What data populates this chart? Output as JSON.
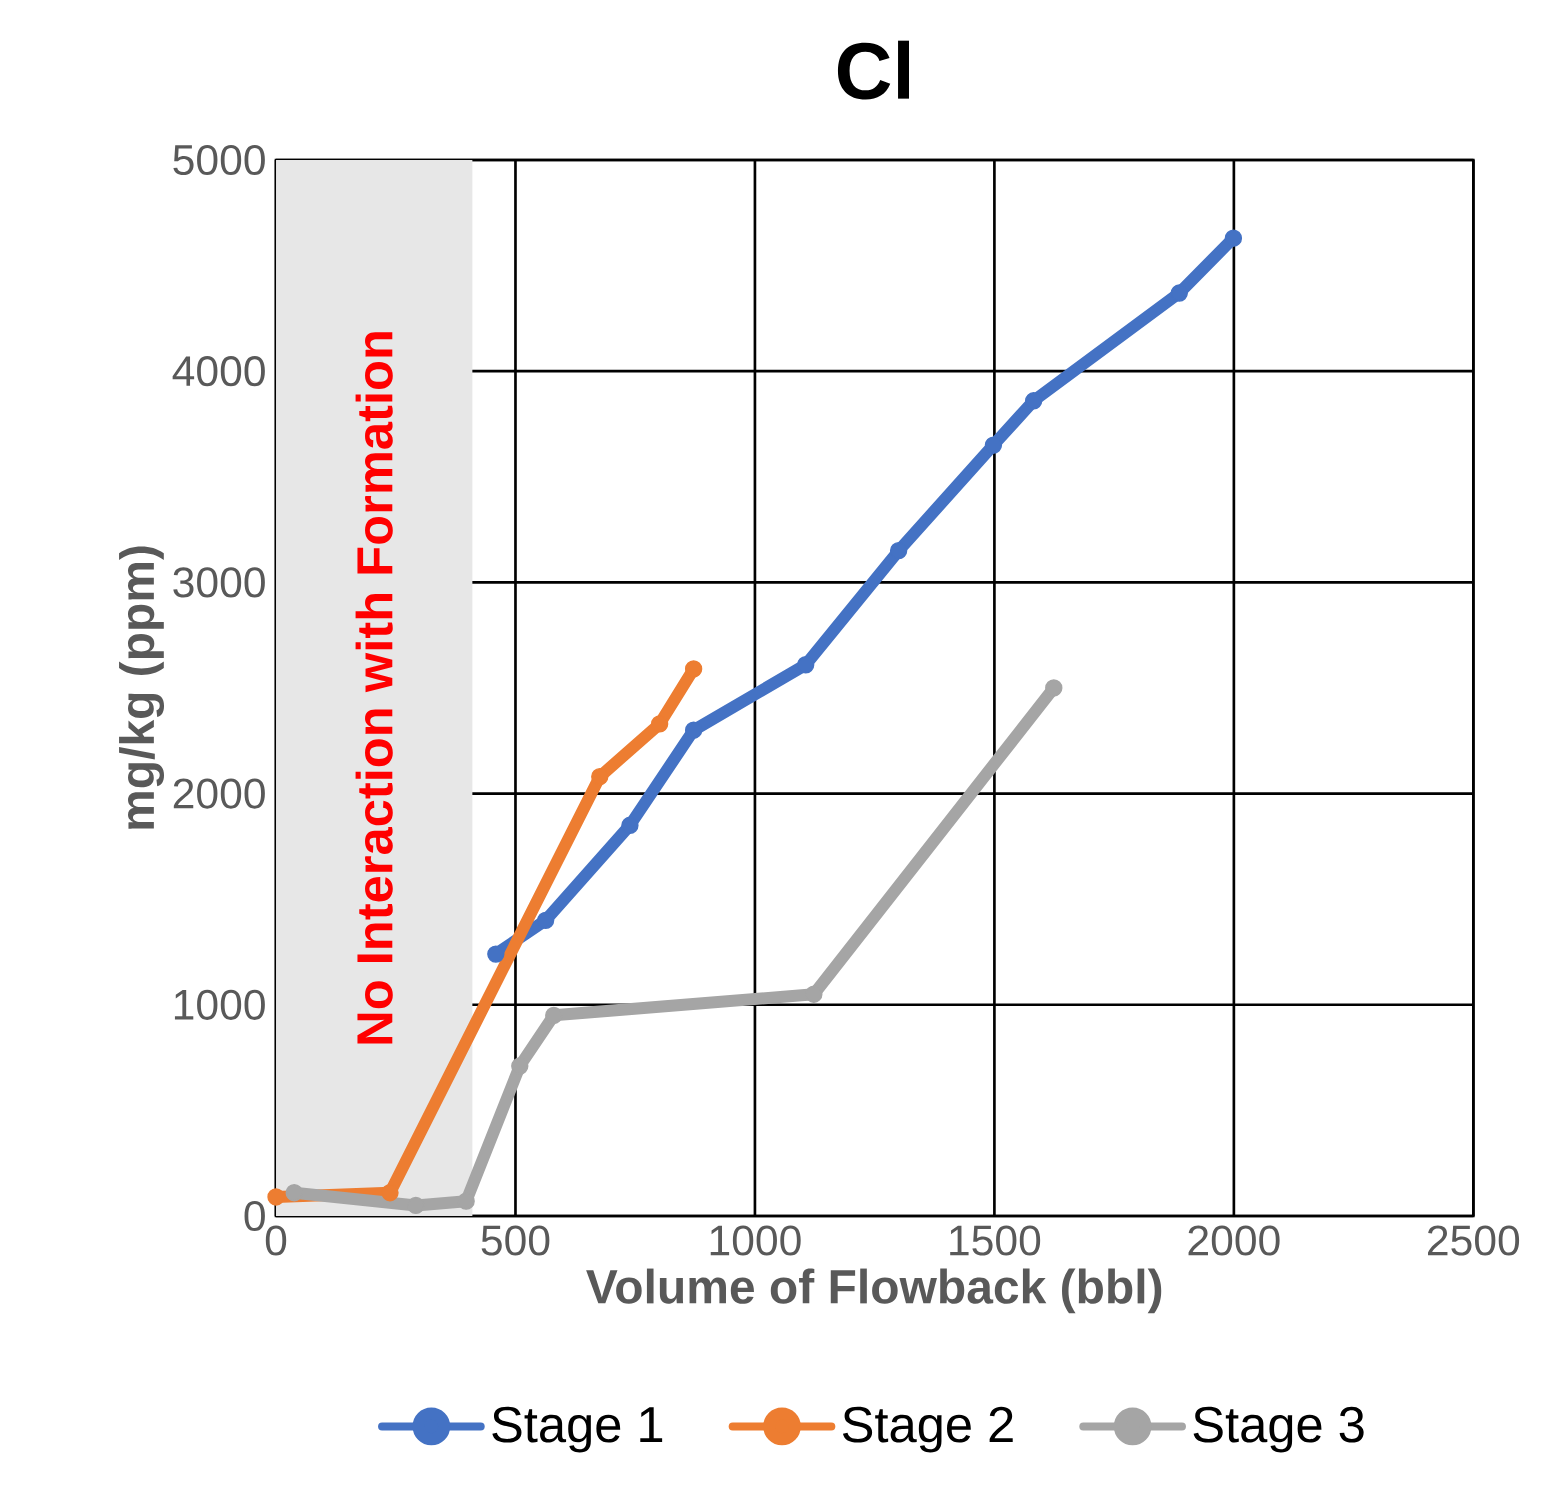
{
  "chart_data": {
    "type": "line",
    "title": "Cl",
    "xlabel": "Volume of Flowback (bbl)",
    "ylabel": "mg/kg (ppm)",
    "series": [
      {
        "name": "Stage 1",
        "color": "#4472c4",
        "x": [
          459,
          563,
          739,
          872,
          1106,
          1300,
          1498,
          1582,
          1886,
          1999
        ],
        "values": [
          1240,
          1400,
          1850,
          2300,
          2610,
          3150,
          3650,
          3860,
          4370,
          4630
        ]
      },
      {
        "name": "Stage 2",
        "color": "#ed7d31",
        "x": [
          0,
          238,
          676,
          801,
          872
        ],
        "values": [
          90,
          110,
          2080,
          2330,
          2590
        ]
      },
      {
        "name": "Stage 3",
        "color": "#a5a5a5",
        "x": [
          38,
          292,
          397,
          509,
          580,
          1123,
          1624
        ],
        "values": [
          110,
          50,
          70,
          710,
          950,
          1050,
          2500
        ]
      }
    ],
    "xlim": [
      0,
      2500
    ],
    "ylim": [
      0,
      5000
    ],
    "xticks": [
      0,
      500,
      1000,
      1500,
      2000,
      2500
    ],
    "yticks": [
      0,
      1000,
      2000,
      3000,
      4000,
      5000
    ],
    "grid": true,
    "legend": "bottom",
    "marker": "circle",
    "bands": [
      {
        "axis": "x",
        "from": 0,
        "to": 410,
        "label": "No Interaction with Formation",
        "color": "#e7e7e7"
      }
    ]
  }
}
